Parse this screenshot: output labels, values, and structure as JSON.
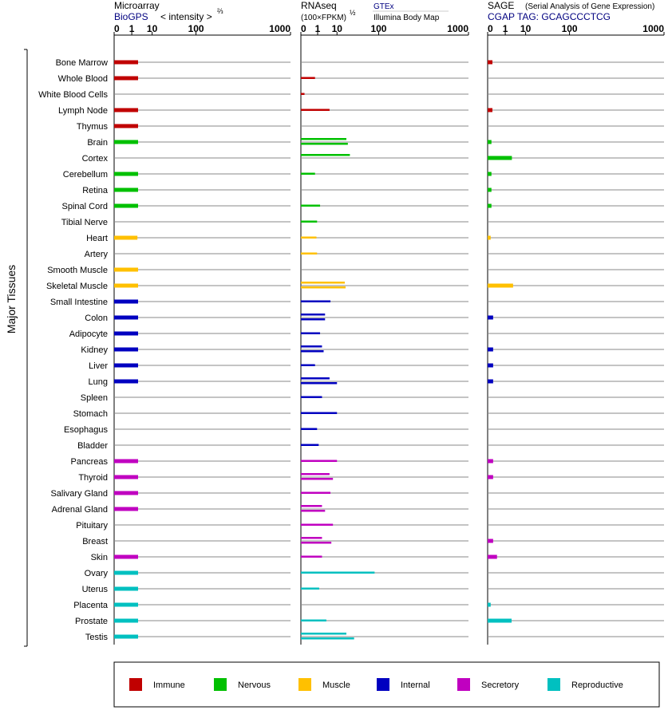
{
  "colors": {
    "immune": "#c00000",
    "nervous": "#00c000",
    "muscle": "#ffc000",
    "internal": "#0000c0",
    "secretory": "#c000c0",
    "reproductive": "#00c0c0",
    "link": "#000080"
  },
  "headers": {
    "microarray": {
      "title": "Microarray",
      "source": "BioGPS",
      "metric": "< intensity >",
      "exponent": "⅔"
    },
    "rnaseq": {
      "title": "RNAseq",
      "metric": "(100×FPKM)",
      "exponent": "½",
      "source_gtex": "GTEx",
      "source_ibm": "Illumina Body Map"
    },
    "sage": {
      "title": "SAGE",
      "subtitle": "(Serial Analysis of Gene Expression)",
      "tag": "CGAP TAG: GCAGCCCTCG"
    }
  },
  "axis_ticks": [
    "0",
    "1",
    "10",
    "100",
    "1000"
  ],
  "y_group_label": "Major Tissues",
  "legend": [
    {
      "key": "immune",
      "label": "Immune"
    },
    {
      "key": "nervous",
      "label": "Nervous"
    },
    {
      "key": "muscle",
      "label": "Muscle"
    },
    {
      "key": "internal",
      "label": "Internal"
    },
    {
      "key": "secretory",
      "label": "Secretory"
    },
    {
      "key": "reproductive",
      "label": "Reproductive"
    }
  ],
  "chart_data": {
    "type": "bar",
    "scale": "x^(1/3) display of values 0–1000",
    "xlim": [
      0,
      1000
    ],
    "categories": [
      "Bone Marrow",
      "Whole Blood",
      "White Blood Cells",
      "Lymph Node",
      "Thymus",
      "Brain",
      "Cortex",
      "Cerebellum",
      "Retina",
      "Spinal Cord",
      "Tibial Nerve",
      "Heart",
      "Artery",
      "Smooth Muscle",
      "Skeletal Muscle",
      "Small Intestine",
      "Colon",
      "Adipocyte",
      "Kidney",
      "Liver",
      "Lung",
      "Spleen",
      "Stomach",
      "Esophagus",
      "Bladder",
      "Pancreas",
      "Thyroid",
      "Salivary Gland",
      "Adrenal Gland",
      "Pituitary",
      "Breast",
      "Skin",
      "Ovary",
      "Uterus",
      "Placenta",
      "Prostate",
      "Testis"
    ],
    "category_system": [
      "immune",
      "immune",
      "immune",
      "immune",
      "immune",
      "nervous",
      "nervous",
      "nervous",
      "nervous",
      "nervous",
      "nervous",
      "muscle",
      "muscle",
      "muscle",
      "muscle",
      "internal",
      "internal",
      "internal",
      "internal",
      "internal",
      "internal",
      "internal",
      "internal",
      "internal",
      "internal",
      "secretory",
      "secretory",
      "secretory",
      "secretory",
      "secretory",
      "secretory",
      "secretory",
      "reproductive",
      "reproductive",
      "reproductive",
      "reproductive",
      "reproductive"
    ],
    "series": [
      {
        "name": "Microarray",
        "values": [
          2.5,
          2.5,
          null,
          2.5,
          2.5,
          2.5,
          null,
          2.5,
          2.5,
          2.5,
          null,
          2.3,
          null,
          2.5,
          2.5,
          2.5,
          2.5,
          2.5,
          2.5,
          2.5,
          2.5,
          null,
          null,
          null,
          null,
          2.5,
          2.5,
          2.5,
          2.5,
          null,
          null,
          2.5,
          2.5,
          2.5,
          2.5,
          2.5,
          2.5
        ]
      },
      {
        "name": "GTEx",
        "values": [
          null,
          null,
          null,
          null,
          null,
          20,
          25,
          null,
          null,
          null,
          null,
          null,
          null,
          null,
          18,
          null,
          3,
          null,
          2,
          null,
          5,
          null,
          null,
          null,
          null,
          null,
          5,
          null,
          2,
          null,
          2,
          null,
          null,
          null,
          null,
          null,
          20
        ]
      },
      {
        "name": "Illumina Body Map",
        "values": [
          null,
          0.6,
          0.01,
          5,
          null,
          22,
          null,
          0.6,
          null,
          1.5,
          0.9,
          0.8,
          0.9,
          null,
          19,
          5.5,
          3,
          1.5,
          2.5,
          0.6,
          10,
          2,
          10,
          0.9,
          1.2,
          10,
          7,
          5.5,
          3,
          7,
          6,
          2,
          85,
          1.3,
          null,
          3.5,
          32
        ]
      },
      {
        "name": "SAGE",
        "values": [
          0.02,
          null,
          null,
          0.02,
          null,
          0.01,
          2.6,
          0.01,
          0.01,
          0.01,
          null,
          0.005,
          null,
          null,
          3,
          null,
          0.03,
          null,
          0.03,
          0.03,
          0.03,
          null,
          null,
          null,
          null,
          0.03,
          0.03,
          null,
          null,
          null,
          0.03,
          0.15,
          null,
          null,
          0.005,
          2.5,
          null
        ]
      }
    ]
  }
}
